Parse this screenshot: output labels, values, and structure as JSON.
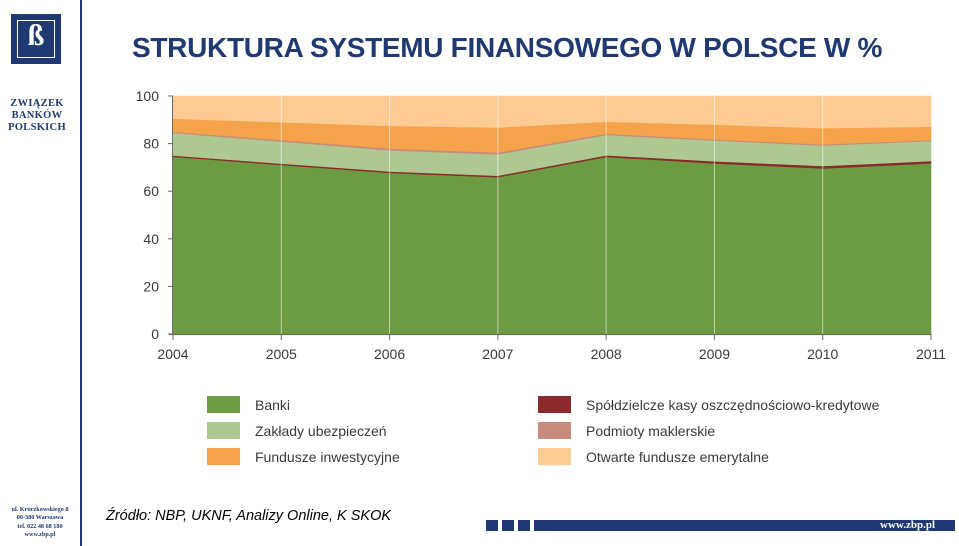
{
  "org": {
    "logo_letter": "ß",
    "name_lines": [
      "ZWIĄZEK",
      "BANKÓW",
      "POLSKICH"
    ],
    "address_lines": [
      "ul. Kruczkowskiego 8",
      "00-380 Warszawa",
      "tel. 022 48 68 180",
      "www.zbp.pl"
    ]
  },
  "title": "STRUKTURA SYSTEMU FINANSOWEGO W POLSCE W %",
  "source": "Źródło: NBP, UKNF, Analizy Online, K SKOK",
  "footer": {
    "url": "www.zbp.pl"
  },
  "colors": {
    "brand": "#1f3a73",
    "banki": "#6d9b42",
    "skok": "#8b2a2e",
    "ubezp": "#adc890",
    "makler": "#c98a7e",
    "fundusze": "#f5a34a",
    "ofe": "#fbcb93"
  },
  "chart_data": {
    "type": "area",
    "stacked": true,
    "x": [
      "2004",
      "2005",
      "2006",
      "2007",
      "2008",
      "2009",
      "2010",
      "2011"
    ],
    "ylim": [
      0,
      100
    ],
    "yticks": [
      "0",
      "20",
      "40",
      "60",
      "80",
      "100"
    ],
    "series": [
      {
        "name": "Banki",
        "values": [
          74.5,
          71,
          67.7,
          65.9,
          74.4,
          71.7,
          69.6,
          71.7
        ]
      },
      {
        "name": "Spółdzielcze kasy oszczędnościowo-kredytowe",
        "values": [
          0.5,
          0.6,
          0.6,
          0.6,
          0.7,
          0.9,
          1.0,
          1.0
        ]
      },
      {
        "name": "Zakłady ubezpieczeń",
        "values": [
          9.5,
          9.3,
          8.9,
          9.0,
          8.5,
          8.7,
          8.6,
          8.4
        ]
      },
      {
        "name": "Podmioty maklerskie",
        "values": [
          0.5,
          0.6,
          0.8,
          0.8,
          0.6,
          0.5,
          0.5,
          0.4
        ]
      },
      {
        "name": "Fundusze inwestycyjne",
        "values": [
          5.5,
          7.5,
          9.5,
          10.5,
          5.0,
          6.2,
          6.8,
          5.6
        ]
      },
      {
        "name": "Otwarte fundusze emerytalne",
        "values": [
          9.5,
          11.0,
          12.5,
          13.2,
          10.8,
          12.0,
          13.5,
          12.9
        ]
      }
    ],
    "legend": [
      {
        "label": "Banki",
        "series": 0
      },
      {
        "label": "Zakłady ubezpieczeń",
        "series": 2
      },
      {
        "label": "Fundusze inwestycyjne",
        "series": 4
      },
      {
        "label": "Spółdzielcze kasy oszczędnościowo-kredytowe",
        "series": 1
      },
      {
        "label": "Podmioty maklerskie",
        "series": 3
      },
      {
        "label": "Otwarte fundusze emerytalne",
        "series": 5
      }
    ]
  }
}
